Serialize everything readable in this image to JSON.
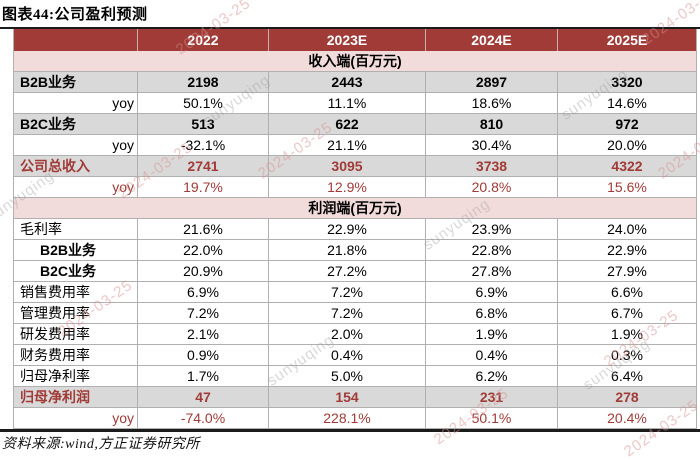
{
  "title": "图表44:公司盈利预测",
  "footer": {
    "source_note": "资料来源:wind,方正证券研究所"
  },
  "watermarks": {
    "date": "2024-03-25",
    "name": "sunyuqing"
  },
  "colors": {
    "header_bg": "#A03B38",
    "section_bg": "#F2DCDB",
    "stripe_bg": "#D9D9D9",
    "accent_red": "#A03B38",
    "grid_line": "#B0B0B0",
    "rule_black": "#1B1B1B"
  },
  "table": {
    "rows": [
      {
        "type": "header",
        "cells": [
          "",
          "2022",
          "2023E",
          "2024E",
          "2025E"
        ]
      },
      {
        "type": "section",
        "cells": [
          "收入端(百万元)"
        ]
      },
      {
        "type": "data-bold",
        "cells": [
          "B2B业务",
          "2198",
          "2443",
          "2897",
          "3320"
        ]
      },
      {
        "type": "yoy",
        "cells": [
          "yoy",
          "50.1%",
          "11.1%",
          "18.6%",
          "14.6%"
        ]
      },
      {
        "type": "data-bold",
        "cells": [
          "B2C业务",
          "513",
          "622",
          "810",
          "972"
        ]
      },
      {
        "type": "yoy",
        "cells": [
          "yoy",
          "-32.1%",
          "21.1%",
          "30.4%",
          "20.0%"
        ]
      },
      {
        "type": "total-red",
        "cells": [
          "公司总收入",
          "2741",
          "3095",
          "3738",
          "4322"
        ]
      },
      {
        "type": "yoy-red",
        "cells": [
          "yoy",
          "19.7%",
          "12.9%",
          "20.8%",
          "15.6%"
        ]
      },
      {
        "type": "section",
        "cells": [
          "利润端(百万元)"
        ]
      },
      {
        "type": "plain",
        "cells": [
          "毛利率",
          "21.6%",
          "22.9%",
          "23.9%",
          "24.0%"
        ]
      },
      {
        "type": "plain-indent",
        "cells": [
          "B2B业务",
          "22.0%",
          "21.8%",
          "22.8%",
          "22.9%"
        ]
      },
      {
        "type": "plain-indent",
        "cells": [
          "B2C业务",
          "20.9%",
          "27.2%",
          "27.8%",
          "27.9%"
        ]
      },
      {
        "type": "plain",
        "cells": [
          "销售费用率",
          "6.9%",
          "7.2%",
          "6.9%",
          "6.6%"
        ]
      },
      {
        "type": "plain",
        "cells": [
          "管理费用率",
          "7.2%",
          "7.2%",
          "6.8%",
          "6.7%"
        ]
      },
      {
        "type": "plain",
        "cells": [
          "研发费用率",
          "2.1%",
          "2.0%",
          "1.9%",
          "1.9%"
        ]
      },
      {
        "type": "plain",
        "cells": [
          "财务费用率",
          "0.9%",
          "0.4%",
          "0.4%",
          "0.3%"
        ]
      },
      {
        "type": "plain",
        "cells": [
          "归母净利率",
          "1.7%",
          "5.0%",
          "6.2%",
          "6.4%"
        ]
      },
      {
        "type": "total-red",
        "cells": [
          "归母净利润",
          "47",
          "154",
          "231",
          "278"
        ]
      },
      {
        "type": "yoy-red",
        "cells": [
          "yoy",
          "-74.0%",
          "228.1%",
          "50.1%",
          "20.4%"
        ]
      }
    ]
  }
}
